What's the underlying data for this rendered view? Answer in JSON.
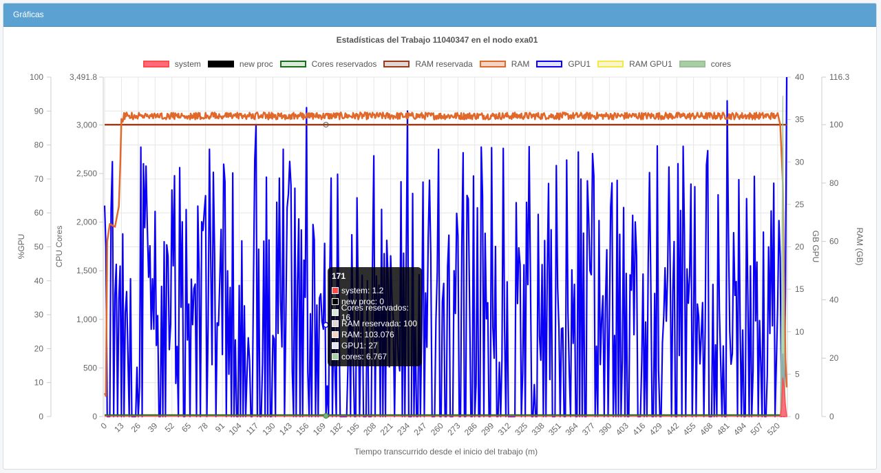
{
  "panel": {
    "title": "Gráficas"
  },
  "chart_data": {
    "type": "line",
    "title": "Estadísticas del Trabajo 11040347 en el nodo exa01",
    "xlabel": "Tiempo transcurrido desde el inicio del trabajo (m)",
    "x_range": [
      0,
      527
    ],
    "x_ticks": [
      0,
      13,
      26,
      39,
      52,
      65,
      78,
      91,
      104,
      117,
      130,
      143,
      156,
      169,
      182,
      195,
      208,
      221,
      234,
      247,
      260,
      273,
      286,
      299,
      312,
      325,
      338,
      351,
      364,
      377,
      390,
      403,
      416,
      429,
      442,
      455,
      468,
      481,
      494,
      507,
      520
    ],
    "axes": {
      "gpu_pct": {
        "label": "%GPU",
        "position": "left-outer",
        "range": [
          0,
          100
        ],
        "ticks": [
          "0",
          "10",
          "20",
          "30",
          "40",
          "50",
          "60",
          "70",
          "80",
          "90",
          "100"
        ]
      },
      "cpu_cores": {
        "label": "CPU Cores",
        "position": "left-inner",
        "range": [
          0,
          3491.8
        ],
        "ticks": [
          "0",
          "500",
          "1,000",
          "1,500",
          "2,000",
          "2,500",
          "3,000",
          "3,491.8"
        ]
      },
      "gb_gpu": {
        "label": "GB GPU",
        "position": "right-inner",
        "range": [
          0,
          40
        ],
        "ticks": [
          "0",
          "5",
          "10",
          "15",
          "20",
          "25",
          "30",
          "35",
          "40"
        ]
      },
      "ram_gb": {
        "label": "RAM (GB)",
        "position": "right-outer",
        "range": [
          0,
          116.3
        ],
        "ticks": [
          "0",
          "20",
          "40",
          "60",
          "80",
          "100",
          "116.3"
        ]
      }
    },
    "grid": true,
    "legend_position": "top",
    "series": [
      {
        "name": "system",
        "color": "#ff4b4b",
        "fill": "#ff6b7a",
        "axis": "cpu_cores",
        "values": {
          "baseline": 0,
          "end_spike": [
            [
              522,
              0
            ],
            [
              523,
              80
            ],
            [
              524,
              400
            ],
            [
              525,
              300
            ],
            [
              526,
              120
            ],
            [
              527,
              0
            ]
          ]
        }
      },
      {
        "name": "new proc",
        "color": "#000000",
        "fill": "#000000",
        "axis": "cpu_cores",
        "values": {
          "constant": 0
        }
      },
      {
        "name": "Cores reservados",
        "color": "#1a6e1a",
        "fill": "#d9ead9",
        "axis": "cpu_cores",
        "values": {
          "constant": 16
        }
      },
      {
        "name": "RAM reservada",
        "color": "#9c3a16",
        "fill": "#e0d6d6",
        "axis": "ram_gb",
        "values": {
          "constant": 100
        }
      },
      {
        "name": "RAM",
        "color": "#e0682a",
        "fill": "#f3d3c3",
        "axis": "ram_gb",
        "values": {
          "ramp": [
            [
              0,
              8
            ],
            [
              1,
              7
            ],
            [
              2,
              60
            ],
            [
              4,
              66
            ],
            [
              8,
              65
            ],
            [
              11,
              72
            ],
            [
              12,
              85
            ],
            [
              13,
              102
            ],
            [
              15,
              100
            ],
            [
              30,
              103
            ],
            [
              60,
              104
            ],
            [
              100,
              103
            ],
            [
              160,
              103
            ],
            [
              240,
              104
            ],
            [
              300,
              103
            ],
            [
              400,
              103
            ],
            [
              480,
              104
            ],
            [
              500,
              103
            ],
            [
              518,
              102
            ],
            [
              520,
              104
            ],
            [
              522,
              100
            ],
            [
              524,
              80
            ],
            [
              526,
              20
            ],
            [
              527,
              10
            ]
          ],
          "typical": 103,
          "noise": 1.2
        }
      },
      {
        "name": "GPU1",
        "color": "#0a00f5",
        "fill": "#e3e3f6",
        "axis": "gpu_pct",
        "values": {
          "typical_range": [
            0,
            90
          ],
          "max": 100,
          "note_peaks": [
            [
              117,
              86
            ],
            [
              156,
              91
            ],
            [
              234,
              90
            ],
            [
              481,
              93
            ],
            [
              527,
              100
            ]
          ]
        }
      },
      {
        "name": "RAM GPU1",
        "color": "#f3ea4a",
        "fill": "#f7f5c9",
        "axis": "gb_gpu",
        "values": {
          "constant": 0
        }
      },
      {
        "name": "cores",
        "color": "#9bbf97",
        "fill": "#a8cfa3",
        "axis": "cpu_cores",
        "values": {
          "baseline": 0,
          "end_spike": [
            [
              522,
              0
            ],
            [
              523,
              1100
            ],
            [
              524,
              3300
            ],
            [
              525,
              900
            ],
            [
              526,
              0
            ]
          ]
        }
      }
    ],
    "tooltip": {
      "title": "171",
      "rows": [
        {
          "label": "system: 1.2",
          "color": "#ff4b4b"
        },
        {
          "label": "new proc: 0",
          "color": "#000000"
        },
        {
          "label": "Cores reservados: 16",
          "color": "#d9ead9"
        },
        {
          "label": "RAM reservada: 100",
          "color": "#e0d6d6"
        },
        {
          "label": "RAM: 103.076",
          "color": "#f3d3c3"
        },
        {
          "label": "GPU1: 27",
          "color": "#e3e3f6"
        },
        {
          "label": "cores: 6.767",
          "color": "#a8cfa3"
        }
      ]
    }
  }
}
